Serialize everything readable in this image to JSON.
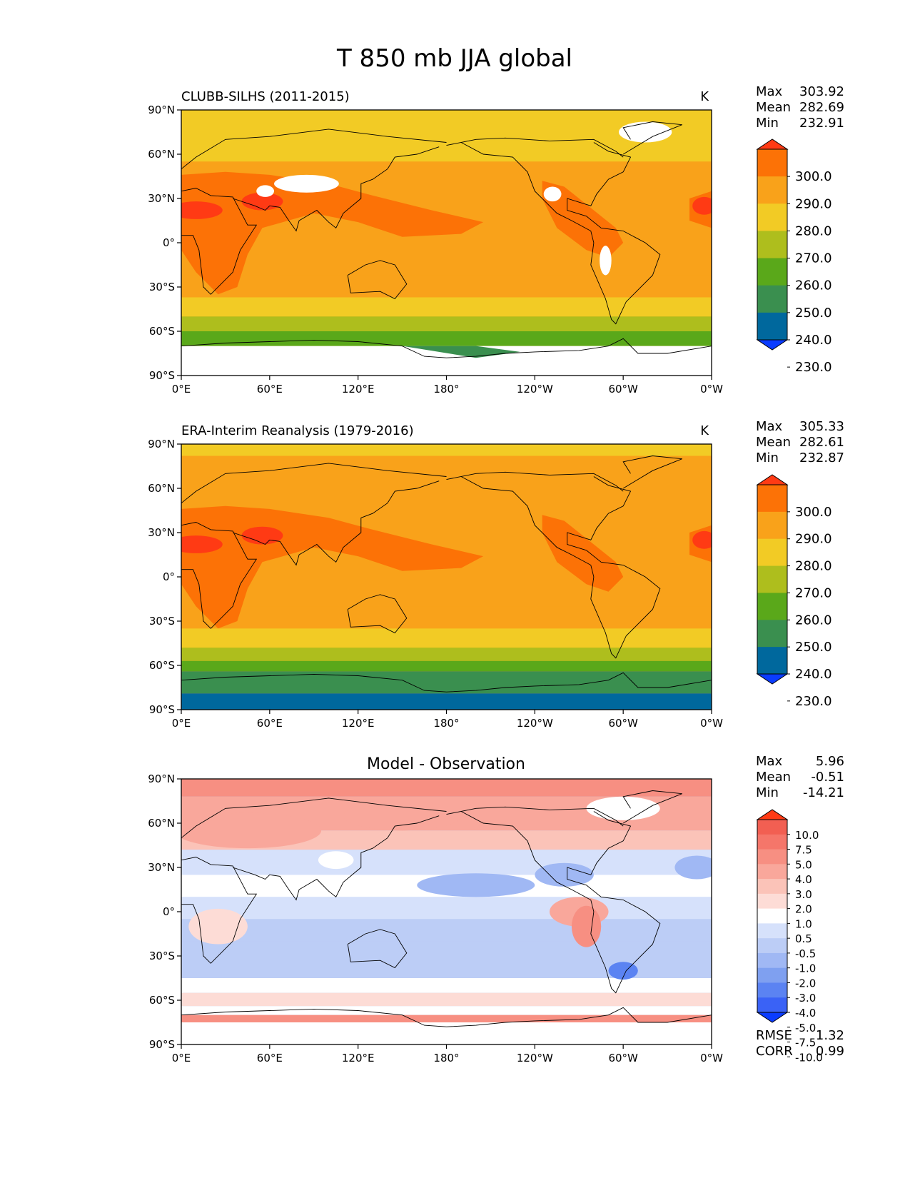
{
  "figure_title": "T 850 mb JJA global",
  "x_ticks": [
    "0°E",
    "60°E",
    "120°E",
    "180°",
    "120°W",
    "60°W",
    "0°W"
  ],
  "y_ticks": [
    "90°N",
    "60°N",
    "30°N",
    "0°",
    "30°S",
    "60°S",
    "90°S"
  ],
  "colors": {
    "abs_levels": [
      "#0a3cff",
      "#00689d",
      "#3a8f4f",
      "#5aa81a",
      "#aebe1d",
      "#f2cb25",
      "#f9a21a",
      "#fc7206",
      "#ff3a14"
    ],
    "diff_levels": [
      "#0a3cff",
      "#3a62f6",
      "#5b83f2",
      "#7fa0f0",
      "#a0b8f4",
      "#bccdf6",
      "#d6e1fb",
      "#ffffff",
      "#fddcd6",
      "#fbc3b8",
      "#f9a79b",
      "#f78f82",
      "#f5766a",
      "#f25f52",
      "#ff3a14"
    ],
    "land_line": "#000000"
  },
  "chart_data": [
    {
      "type": "heatmap",
      "title": "CLUBB-SILHS (2011-2015)",
      "units": "K",
      "stats": {
        "max_label": "Max",
        "max": "303.92",
        "mean_label": "Mean",
        "mean": "282.69",
        "min_label": "Min",
        "min": "232.91"
      },
      "colorbar_labels": [
        "300.0",
        "290.0",
        "280.0",
        "270.0",
        "260.0",
        "250.0",
        "240.0",
        "230.0"
      ],
      "xlim": [
        0,
        360
      ],
      "ylim": [
        -90,
        90
      ]
    },
    {
      "type": "heatmap",
      "title": "ERA-Interim Reanalysis (1979-2016)",
      "units": "K",
      "stats": {
        "max_label": "Max",
        "max": "305.33",
        "mean_label": "Mean",
        "mean": "282.61",
        "min_label": "Min",
        "min": "232.87"
      },
      "colorbar_labels": [
        "300.0",
        "290.0",
        "280.0",
        "270.0",
        "260.0",
        "250.0",
        "240.0",
        "230.0"
      ],
      "xlim": [
        0,
        360
      ],
      "ylim": [
        -90,
        90
      ]
    },
    {
      "type": "heatmap",
      "title": "Model - Observation",
      "units": "",
      "stats": {
        "max_label": "Max",
        "max": "5.96",
        "mean_label": "Mean",
        "mean": "-0.51",
        "min_label": "Min",
        "min": "-14.21"
      },
      "colorbar_labels": [
        "10.0",
        "7.5",
        "5.0",
        "4.0",
        "3.0",
        "2.0",
        "1.0",
        "0.5",
        "-0.5",
        "-1.0",
        "-2.0",
        "-3.0",
        "-4.0",
        "-5.0",
        "-7.5",
        "-10.0"
      ],
      "metrics": {
        "rmse_label": "RMSE",
        "rmse": "1.32",
        "corr_label": "CORR",
        "corr": "0.99"
      },
      "xlim": [
        0,
        360
      ],
      "ylim": [
        -90,
        90
      ]
    }
  ]
}
